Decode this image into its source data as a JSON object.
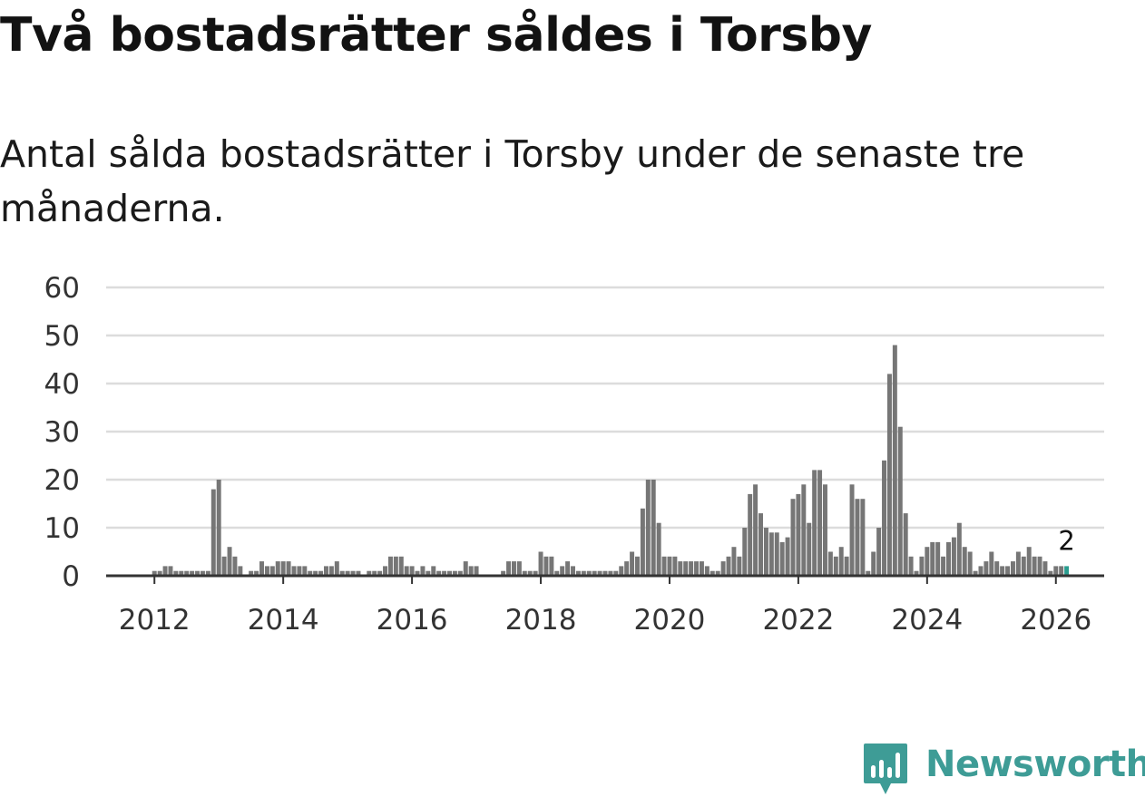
{
  "header": {
    "title": "Två bostadsrätter såldes i Torsby",
    "subtitle": "Antal sålda bostadsrätter i Torsby under de senaste tre månaderna."
  },
  "brand": {
    "name": "Newsworthy"
  },
  "colors": {
    "bar": "#767676",
    "highlight": "#2a9d8f",
    "grid": "#dcdcdc",
    "axis": "#333333",
    "brand": "#3e9c96"
  },
  "chart_data": {
    "type": "bar",
    "title": "Två bostadsrätter såldes i Torsby",
    "xlabel": "",
    "ylabel": "",
    "ylim": [
      0,
      60
    ],
    "yticks": [
      0,
      10,
      20,
      30,
      40,
      50,
      60
    ],
    "xticks": [
      "2012",
      "2014",
      "2016",
      "2018",
      "2020",
      "2022",
      "2024",
      "2026"
    ],
    "xlim": [
      2011.25,
      2026.75
    ],
    "grid": true,
    "start": {
      "year": 2011,
      "month": 3
    },
    "values": [
      0,
      0,
      0,
      0,
      0,
      0,
      0,
      0,
      0,
      0,
      1,
      1,
      2,
      2,
      1,
      1,
      1,
      1,
      1,
      1,
      1,
      18,
      20,
      4,
      6,
      4,
      2,
      0,
      1,
      1,
      3,
      2,
      2,
      3,
      3,
      3,
      2,
      2,
      2,
      1,
      1,
      1,
      2,
      2,
      3,
      1,
      1,
      1,
      1,
      0,
      1,
      1,
      1,
      2,
      4,
      4,
      4,
      2,
      2,
      1,
      2,
      1,
      2,
      1,
      1,
      1,
      1,
      1,
      3,
      2,
      2,
      0,
      0,
      0,
      0,
      1,
      3,
      3,
      3,
      1,
      1,
      1,
      5,
      4,
      4,
      1,
      2,
      3,
      2,
      1,
      1,
      1,
      1,
      1,
      1,
      1,
      1,
      2,
      3,
      5,
      4,
      14,
      20,
      20,
      11,
      4,
      4,
      4,
      3,
      3,
      3,
      3,
      3,
      2,
      1,
      1,
      3,
      4,
      6,
      4,
      10,
      17,
      19,
      13,
      10,
      9,
      9,
      7,
      8,
      16,
      17,
      19,
      11,
      22,
      22,
      19,
      5,
      4,
      6,
      4,
      19,
      16,
      16,
      1,
      5,
      10,
      24,
      42,
      48,
      31,
      13,
      4,
      1,
      4,
      6,
      7,
      7,
      4,
      7,
      8,
      11,
      6,
      5,
      1,
      2,
      3,
      5,
      3,
      2,
      2,
      3,
      5,
      4,
      6,
      4,
      4,
      3,
      1,
      2,
      2,
      2
    ],
    "highlight": {
      "index": -1,
      "label": "2"
    }
  }
}
